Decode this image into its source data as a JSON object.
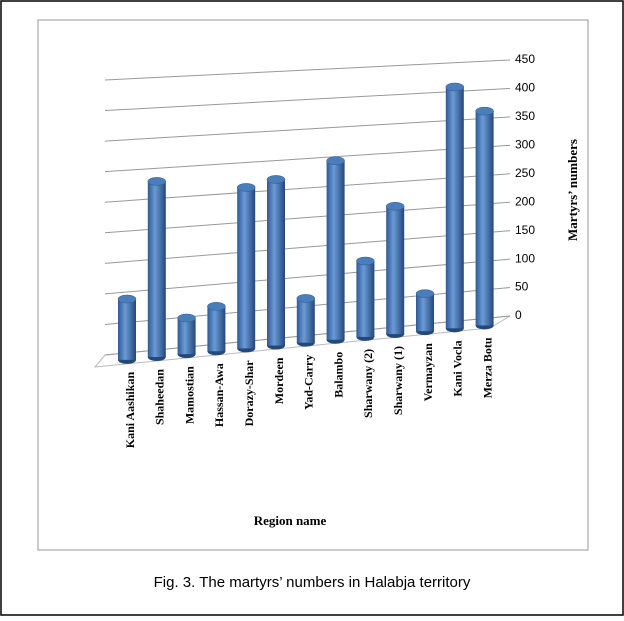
{
  "chart_data": {
    "type": "bar3d",
    "caption": "Fig. 3. The martyrs’ numbers in Halabja territory",
    "x_label": "Region name",
    "y_label": "Martyrs’ numbers",
    "categories": [
      "Kani Aashikan",
      "Shaheedan",
      "Mamostian",
      "Hassan-Awa",
      "Dorazy-Shar",
      "Mordeen",
      "Yad-Carry",
      "Balambo",
      "Sharwany (2)",
      "Sharwany (1)",
      "Vermayzan",
      "Kani Vocla",
      "Merza Botu"
    ],
    "values": [
      100,
      290,
      60,
      75,
      270,
      280,
      75,
      305,
      130,
      220,
      65,
      420,
      375
    ],
    "color": "#4a7ebb",
    "ylim": [
      0,
      450
    ],
    "yticks": [
      0,
      50,
      100,
      150,
      200,
      250,
      300,
      350,
      400,
      450
    ],
    "grid": true
  }
}
